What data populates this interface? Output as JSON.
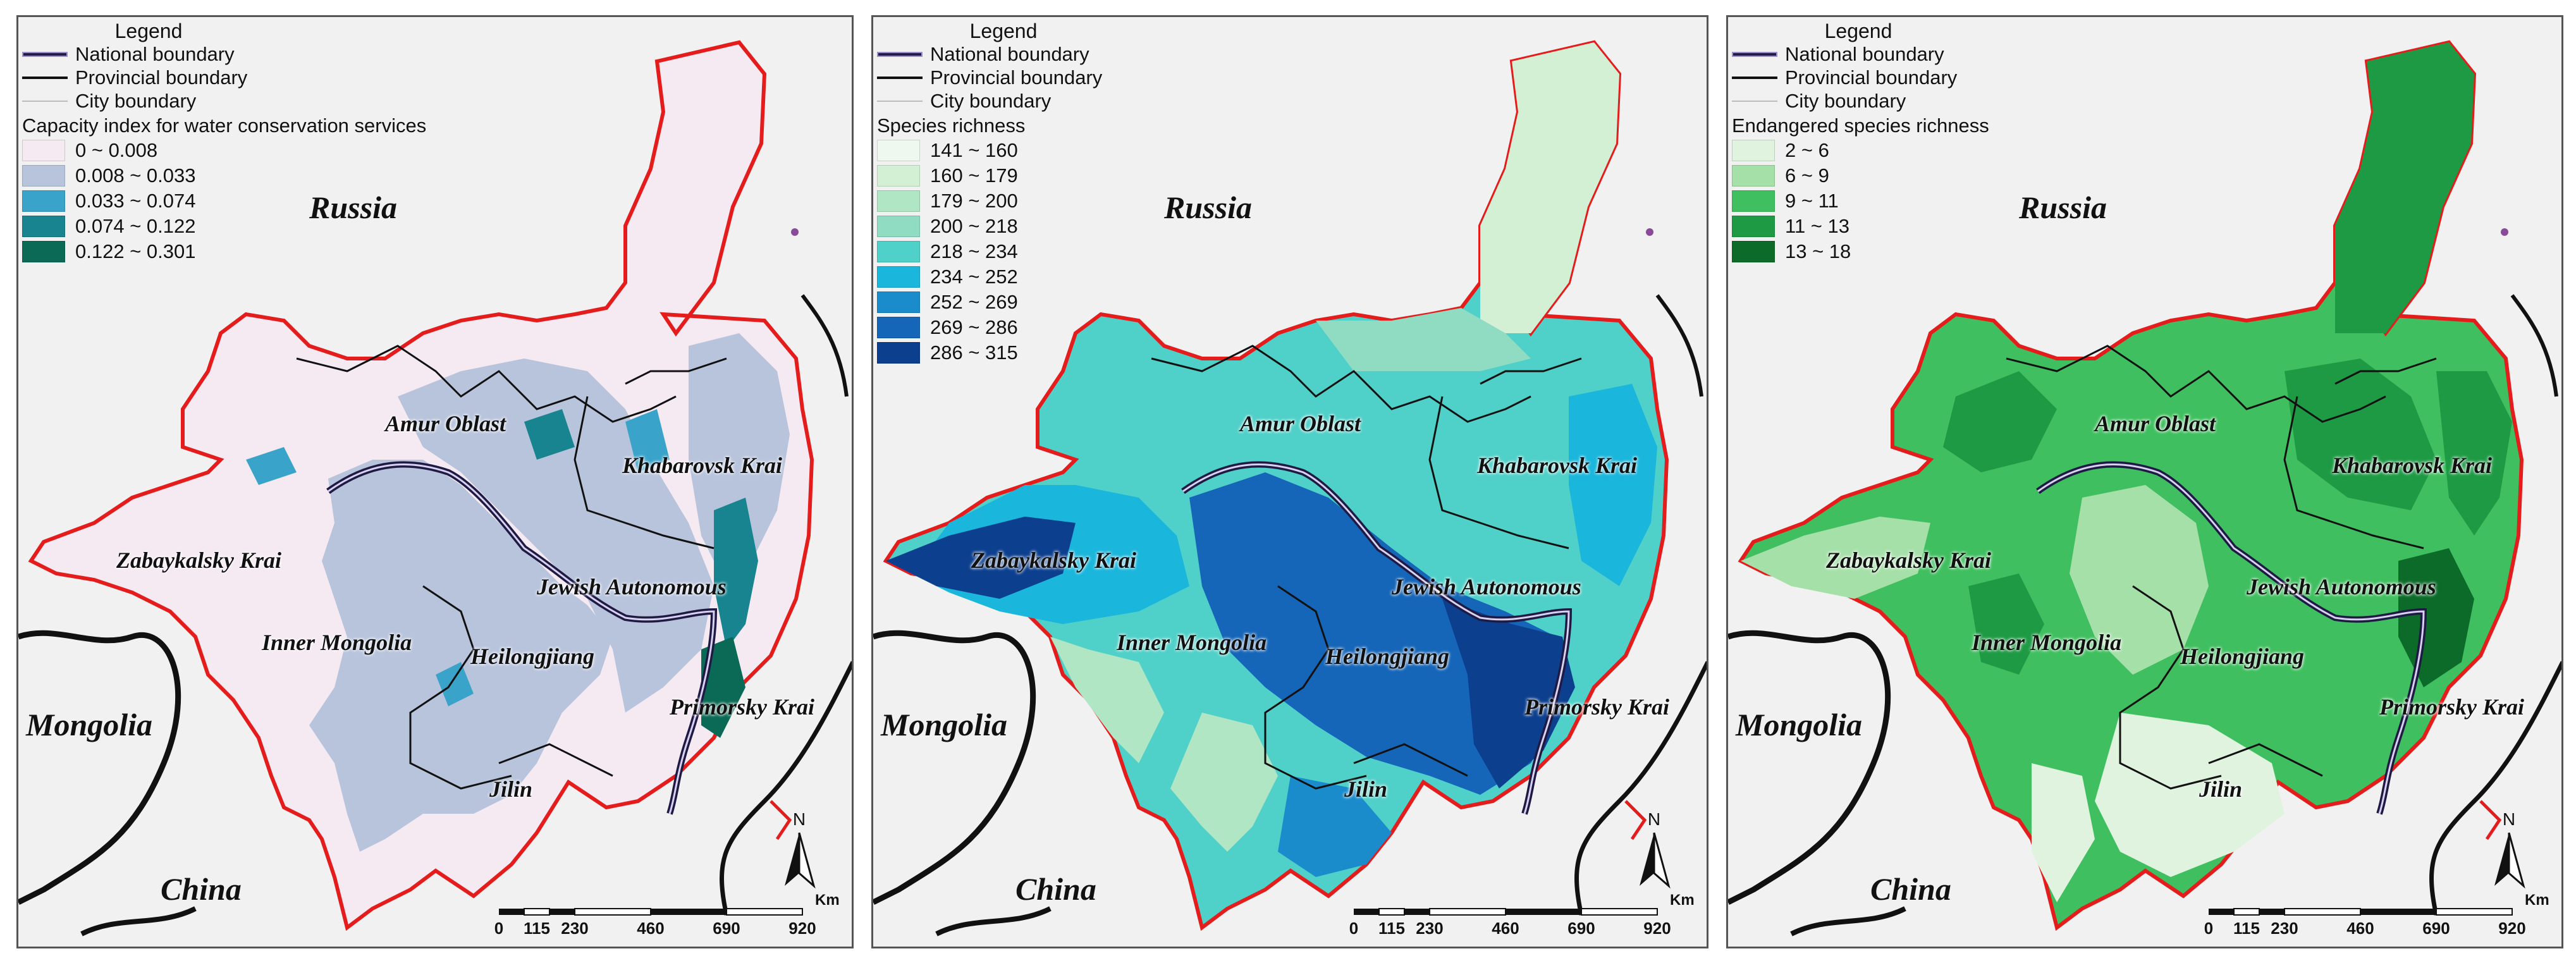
{
  "panels": [
    {
      "legend_title": "Legend",
      "line_legend": [
        "National boundary",
        "Provincial boundary",
        "City boundary"
      ],
      "scale_title": "Capacity index for water conservation services",
      "classes": [
        {
          "label": "0 ~ 0.008",
          "color": "#f5e9f2"
        },
        {
          "label": "0.008 ~ 0.033",
          "color": "#b8c4dc"
        },
        {
          "label": "0.033 ~ 0.074",
          "color": "#3aa3c9"
        },
        {
          "label": "0.074 ~ 0.122",
          "color": "#17848f"
        },
        {
          "label": "0.122 ~ 0.301",
          "color": "#0b6a55"
        }
      ]
    },
    {
      "legend_title": "Legend",
      "line_legend": [
        "National boundary",
        "Provincial boundary",
        "City boundary"
      ],
      "scale_title": "Species richness",
      "classes": [
        {
          "label": "141 ~ 160",
          "color": "#eef8ee"
        },
        {
          "label": "160  ~ 179",
          "color": "#d3f0d5"
        },
        {
          "label": "179 ~ 200",
          "color": "#b1e6c4"
        },
        {
          "label": "200 ~ 218",
          "color": "#8fdcc3"
        },
        {
          "label": "218 ~ 234",
          "color": "#4fd0c8"
        },
        {
          "label": "234 ~ 252",
          "color": "#1ab6db"
        },
        {
          "label": "252 ~ 269",
          "color": "#1a8ccc"
        },
        {
          "label": "269 ~ 286",
          "color": "#1565b8"
        },
        {
          "label": "286 ~ 315",
          "color": "#0c3f8e"
        }
      ]
    },
    {
      "legend_title": "Legend",
      "line_legend": [
        "National boundary",
        "Provincial boundary",
        "City boundary"
      ],
      "scale_title": "Endangered species richness",
      "classes": [
        {
          "label": "2 ~ 6",
          "color": "#dff3df"
        },
        {
          "label": "6 ~ 9",
          "color": "#a6e0a9"
        },
        {
          "label": "9 ~ 11",
          "color": "#3fbf5f"
        },
        {
          "label": "11 ~ 13",
          "color": "#1e9a45"
        },
        {
          "label": "13 ~ 18",
          "color": "#0d6b2a"
        }
      ]
    }
  ],
  "map_labels": {
    "russia": "Russia",
    "mongolia": "Mongolia",
    "china": "China",
    "amur": "Amur Oblast",
    "khabarovsk": "Khabarovsk Krai",
    "zabaykalsky": "Zabaykalsky Krai",
    "jewish": "Jewish Autonomous",
    "inner_mongolia": "Inner Mongolia",
    "heilongjiang": "Heilongjiang",
    "primorsky": "Primorsky Krai",
    "jilin": "Jilin"
  },
  "north_arrow_label": "N",
  "scale_bar": {
    "unit": "Km",
    "ticks": [
      "0",
      "115",
      "230",
      "460",
      "690",
      "920"
    ]
  }
}
